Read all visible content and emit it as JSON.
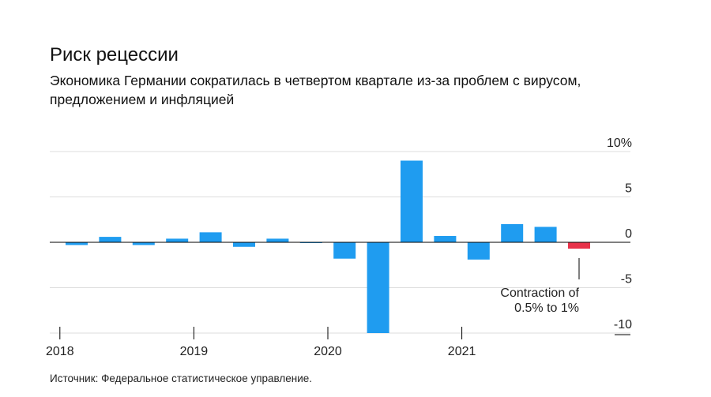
{
  "header": {
    "title": "Риск рецессии",
    "subtitle": "Экономика Германии сократилась в четвертом квартале из-за проблем с вирусом, предложением и инфляцией"
  },
  "footer": {
    "source": "Источник: Федеральное статистическое управление."
  },
  "chart_data": {
    "type": "bar",
    "title": "Риск рецессии",
    "xlabel": "",
    "ylabel": "",
    "ylim": [
      -10,
      10
    ],
    "y_ticks": [
      "10%",
      "5",
      "0",
      "-5",
      "-10"
    ],
    "y_tick_values": [
      10,
      5,
      0,
      -5,
      -10
    ],
    "x_year_labels": [
      "2018",
      "2019",
      "2020",
      "2021"
    ],
    "categories": [
      "2018 Q1",
      "2018 Q2",
      "2018 Q3",
      "2018 Q4",
      "2019 Q1",
      "2019 Q2",
      "2019 Q3",
      "2019 Q4",
      "2020 Q1",
      "2020 Q2",
      "2020 Q3",
      "2020 Q4",
      "2021 Q1",
      "2021 Q2",
      "2021 Q3",
      "2021 Q4"
    ],
    "values": [
      -0.3,
      0.6,
      -0.3,
      0.4,
      1.1,
      -0.5,
      0.4,
      0.0,
      -1.8,
      -10.0,
      9.0,
      0.7,
      -1.9,
      2.0,
      1.7,
      -0.7
    ],
    "colors": {
      "default": "#1f9cf0",
      "highlight": "#e8334a",
      "grid": "#dddddd",
      "axis": "#000000"
    },
    "highlight_index": 15,
    "annotation": {
      "index": 15,
      "lines": [
        "Contraction of",
        "0.5% to 1%"
      ]
    },
    "grid": true,
    "y_axis_position": "right"
  }
}
